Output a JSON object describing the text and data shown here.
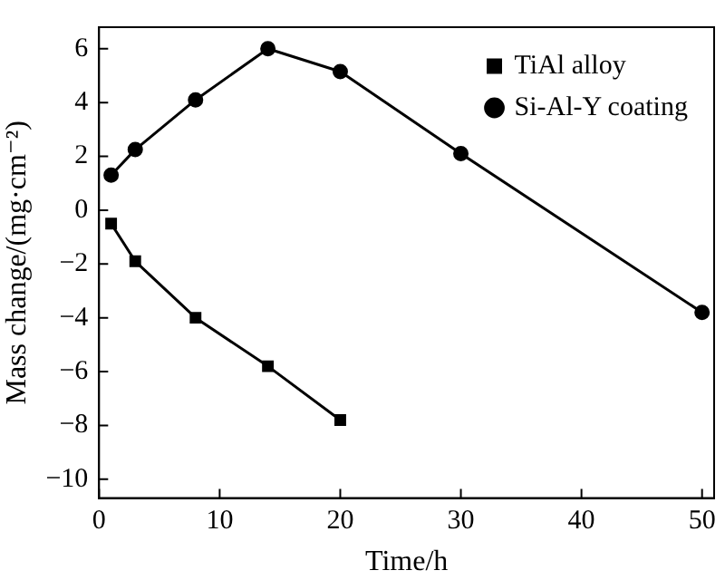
{
  "chart_data": {
    "type": "line",
    "xlabel": "Time/h",
    "ylabel": "Mass change/(mg·cm⁻²)",
    "xlim": [
      0,
      51
    ],
    "ylim": [
      -10.7,
      6.8
    ],
    "xticks": [
      0,
      10,
      20,
      30,
      40,
      50
    ],
    "yticks": [
      -10,
      -8,
      -6,
      -4,
      -2,
      0,
      2,
      4,
      6
    ],
    "grid": false,
    "legend": "top right",
    "line_style": "solid",
    "series": [
      {
        "name": "TiAl alloy",
        "color": "#000000",
        "marker": "square",
        "x": [
          1,
          3,
          8,
          14,
          20
        ],
        "values": [
          -0.5,
          -1.9,
          -4.0,
          -5.8,
          -7.8
        ]
      },
      {
        "name": "Si-Al-Y coating",
        "color": "#000000",
        "marker": "circle",
        "x": [
          1,
          3,
          8,
          14,
          20,
          30,
          50
        ],
        "values": [
          1.3,
          2.25,
          4.1,
          6.0,
          5.15,
          2.1,
          -3.8
        ]
      }
    ]
  }
}
